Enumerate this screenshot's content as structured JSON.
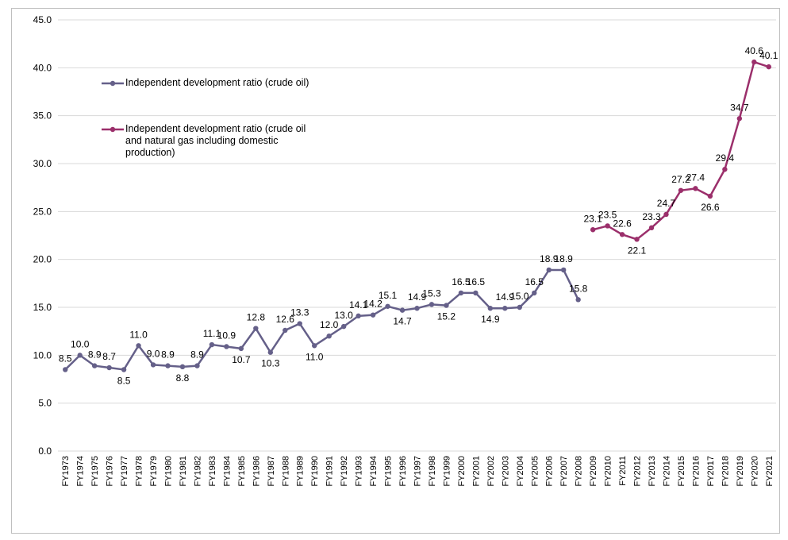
{
  "chart_data": {
    "type": "line",
    "categories": [
      "FY1973",
      "FY1974",
      "FY1975",
      "FY1976",
      "FY1977",
      "FY1978",
      "FY1979",
      "FY1980",
      "FY1981",
      "FY1982",
      "FY1983",
      "FY1984",
      "FY1985",
      "FY1986",
      "FY1987",
      "FY1988",
      "FY1989",
      "FY1990",
      "FY1991",
      "FY1992",
      "FY1993",
      "FY1994",
      "FY1995",
      "FY1996",
      "FY1997",
      "FY1998",
      "FY1999",
      "FY2000",
      "FY2001",
      "FY2002",
      "FY2003",
      "FY2004",
      "FY2005",
      "FY2006",
      "FY2007",
      "FY2008",
      "FY2009",
      "FY2010",
      "FY2011",
      "FY2012",
      "FY2013",
      "FY2014",
      "FY2015",
      "FY2016",
      "FY2017",
      "FY2018",
      "FY2019",
      "FY2020",
      "FY2021"
    ],
    "series": [
      {
        "name": "Independent development ratio (crude oil)",
        "color": "#656089",
        "values": [
          8.5,
          10.0,
          8.9,
          8.7,
          8.5,
          11.0,
          9.0,
          8.9,
          8.8,
          8.9,
          11.1,
          10.9,
          10.7,
          12.8,
          10.3,
          12.6,
          13.3,
          11.0,
          12.0,
          13.0,
          14.1,
          14.2,
          15.1,
          14.7,
          14.9,
          15.3,
          15.2,
          16.5,
          16.5,
          14.9,
          14.9,
          15.0,
          16.5,
          18.9,
          18.9,
          15.8,
          null,
          null,
          null,
          null,
          null,
          null,
          null,
          null,
          null,
          null,
          null,
          null,
          null
        ],
        "value_labels": [
          "8.5",
          "10.0",
          "8.9",
          "8.7",
          "8.5",
          "11.0",
          "9.0",
          "8.9",
          "8.8",
          "8.9",
          "11.1",
          "10.9",
          "10.7",
          "12.8",
          "10.3",
          "12.6",
          "13.3",
          "11.0",
          "12.0",
          "13.0",
          "14.1",
          "14.2",
          "15.1",
          "14.7",
          "14.9",
          "15.3",
          "15.2",
          "16.5",
          "16.5",
          "14.9",
          "14.9",
          "15.0",
          "16.5",
          "18.9",
          "18.9",
          "15.8",
          null,
          null,
          null,
          null,
          null,
          null,
          null,
          null,
          null,
          null,
          null,
          null,
          null
        ]
      },
      {
        "name": "Independent development ratio (crude oil and natural gas including domestic production)",
        "color": "#9b2f6b",
        "values": [
          null,
          null,
          null,
          null,
          null,
          null,
          null,
          null,
          null,
          null,
          null,
          null,
          null,
          null,
          null,
          null,
          null,
          null,
          null,
          null,
          null,
          null,
          null,
          null,
          null,
          null,
          null,
          null,
          null,
          null,
          null,
          null,
          null,
          null,
          null,
          null,
          23.1,
          23.5,
          22.6,
          22.1,
          23.3,
          24.7,
          27.2,
          27.4,
          26.6,
          29.4,
          34.7,
          40.6,
          40.1
        ],
        "value_labels": [
          null,
          null,
          null,
          null,
          null,
          null,
          null,
          null,
          null,
          null,
          null,
          null,
          null,
          null,
          null,
          null,
          null,
          null,
          null,
          null,
          null,
          null,
          null,
          null,
          null,
          null,
          null,
          null,
          null,
          null,
          null,
          null,
          null,
          null,
          null,
          null,
          "23.1",
          "23.5",
          "22.6",
          "22.1",
          "23.3",
          "24.7",
          "27.2",
          "27.4",
          "26.6",
          "29.4",
          "34.7",
          "40.6",
          "40.1"
        ]
      }
    ],
    "ylim": [
      0,
      45
    ],
    "yticks": [
      {
        "value": 0,
        "label": "0.0"
      },
      {
        "value": 5,
        "label": "5.0"
      },
      {
        "value": 10,
        "label": "10.0"
      },
      {
        "value": 15,
        "label": "15.0"
      },
      {
        "value": 20,
        "label": "20.0"
      },
      {
        "value": 25,
        "label": "25.0"
      },
      {
        "value": 30,
        "label": "30.0"
      },
      {
        "value": 35,
        "label": "35.0"
      },
      {
        "value": 40,
        "label": "40.0"
      },
      {
        "value": 45,
        "label": "45.0"
      }
    ],
    "grid": true,
    "legend": "upper-left"
  }
}
